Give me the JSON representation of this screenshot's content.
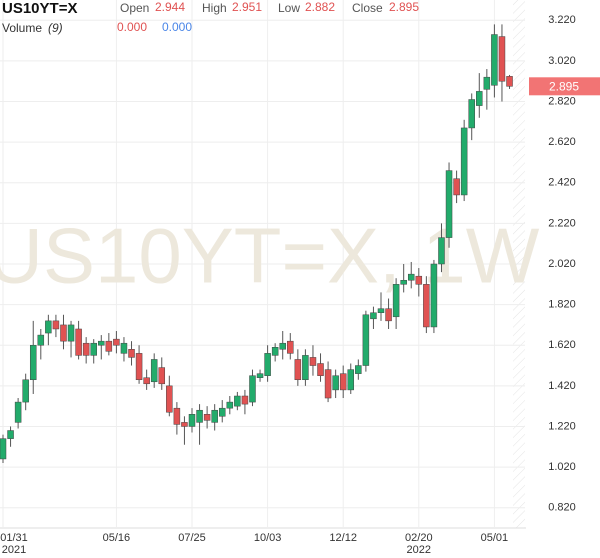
{
  "chart_data": {
    "type": "candlestick",
    "symbol": "US10YT=X",
    "watermark": "US10YT=X, 1W",
    "header": {
      "open_label": "Open",
      "open": 2.944,
      "high_label": "High",
      "high": 2.951,
      "low_label": "Low",
      "low": 2.882,
      "close_label": "Close",
      "close": 2.895
    },
    "volume": {
      "label": "Volume",
      "period_label": "(9)",
      "values": [
        {
          "value": 0,
          "label": "0.000"
        },
        {
          "value": 0,
          "label": "0.000"
        }
      ]
    },
    "last_price": 2.895,
    "up_color": "#22ab6b",
    "down_color": "#e05252",
    "grid": true,
    "categories": [
      "01/31",
      null,
      null,
      null,
      null,
      null,
      null,
      null,
      null,
      null,
      null,
      null,
      null,
      null,
      null,
      "05/16",
      null,
      null,
      null,
      null,
      null,
      null,
      null,
      null,
      null,
      "07/25",
      null,
      null,
      null,
      null,
      null,
      null,
      null,
      null,
      null,
      "10/03",
      null,
      null,
      null,
      null,
      null,
      null,
      null,
      null,
      null,
      "12/12",
      null,
      null,
      null,
      null,
      null,
      null,
      null,
      null,
      null,
      "02/20",
      null,
      null,
      null,
      null,
      null,
      null,
      null,
      null,
      null,
      "05/01",
      null,
      null
    ],
    "category_years": [
      "2021",
      null,
      null,
      null,
      null,
      null,
      null,
      null,
      null,
      null,
      null,
      null,
      null,
      null,
      null,
      null,
      null,
      null,
      null,
      null,
      null,
      null,
      null,
      null,
      null,
      null,
      null,
      null,
      null,
      null,
      null,
      null,
      null,
      null,
      null,
      null,
      null,
      null,
      null,
      null,
      null,
      null,
      null,
      null,
      null,
      null,
      null,
      null,
      null,
      null,
      null,
      null,
      null,
      null,
      null,
      "2022",
      null,
      null,
      null,
      null,
      null,
      null,
      null,
      null,
      null,
      null,
      null,
      null
    ],
    "open": [
      1.06,
      1.16,
      1.24,
      1.34,
      1.45,
      1.62,
      1.68,
      1.74,
      1.72,
      1.64,
      1.7,
      1.63,
      1.57,
      1.62,
      1.64,
      1.65,
      1.58,
      1.6,
      1.58,
      1.46,
      1.44,
      1.51,
      1.42,
      1.31,
      1.24,
      1.22,
      1.24,
      1.28,
      1.24,
      1.27,
      1.31,
      1.32,
      1.37,
      1.34,
      1.46,
      1.47,
      1.57,
      1.6,
      1.64,
      1.55,
      1.45,
      1.56,
      1.53,
      1.5,
      1.4,
      1.48,
      1.4,
      1.48,
      1.52,
      1.75,
      1.78,
      1.8,
      1.76,
      1.92,
      1.94,
      1.96,
      1.92,
      1.71,
      2.02,
      2.15,
      2.44,
      2.36,
      2.69,
      2.8,
      2.88,
      2.9,
      3.14,
      2.944
    ],
    "high": [
      1.18,
      1.22,
      1.36,
      1.48,
      1.74,
      1.7,
      1.77,
      1.77,
      1.77,
      1.74,
      1.74,
      1.66,
      1.65,
      1.67,
      1.68,
      1.69,
      1.66,
      1.64,
      1.62,
      1.5,
      1.58,
      1.56,
      1.47,
      1.34,
      1.27,
      1.31,
      1.33,
      1.32,
      1.33,
      1.35,
      1.37,
      1.39,
      1.4,
      1.5,
      1.5,
      1.62,
      1.63,
      1.69,
      1.68,
      1.6,
      1.6,
      1.62,
      1.58,
      1.54,
      1.5,
      1.52,
      1.53,
      1.55,
      1.79,
      1.81,
      1.88,
      1.85,
      1.95,
      2.02,
      2.03,
      2.0,
      1.96,
      2.04,
      2.22,
      2.52,
      2.48,
      2.73,
      2.86,
      2.96,
      2.98,
      3.2,
      3.2,
      2.951
    ],
    "low": [
      1.04,
      1.12,
      1.21,
      1.3,
      1.38,
      1.55,
      1.62,
      1.66,
      1.6,
      1.56,
      1.55,
      1.53,
      1.53,
      1.55,
      1.57,
      1.58,
      1.54,
      1.52,
      1.43,
      1.4,
      1.41,
      1.4,
      1.27,
      1.18,
      1.13,
      1.19,
      1.13,
      1.21,
      1.2,
      1.24,
      1.28,
      1.3,
      1.28,
      1.32,
      1.44,
      1.44,
      1.54,
      1.55,
      1.55,
      1.42,
      1.42,
      1.47,
      1.44,
      1.34,
      1.36,
      1.36,
      1.38,
      1.45,
      1.49,
      1.7,
      1.74,
      1.7,
      1.7,
      1.88,
      1.9,
      1.86,
      1.68,
      1.68,
      1.98,
      2.1,
      2.32,
      2.33,
      2.63,
      2.74,
      2.78,
      2.84,
      2.82,
      2.882
    ],
    "close": [
      1.16,
      1.2,
      1.34,
      1.45,
      1.62,
      1.67,
      1.74,
      1.7,
      1.64,
      1.72,
      1.57,
      1.57,
      1.63,
      1.64,
      1.59,
      1.62,
      1.63,
      1.56,
      1.45,
      1.43,
      1.55,
      1.43,
      1.29,
      1.23,
      1.22,
      1.28,
      1.3,
      1.25,
      1.3,
      1.31,
      1.34,
      1.37,
      1.33,
      1.47,
      1.48,
      1.58,
      1.61,
      1.63,
      1.58,
      1.45,
      1.57,
      1.52,
      1.47,
      1.36,
      1.47,
      1.4,
      1.5,
      1.52,
      1.77,
      1.78,
      1.8,
      1.74,
      1.92,
      1.94,
      1.97,
      1.92,
      1.71,
      2.02,
      2.15,
      2.48,
      2.36,
      2.69,
      2.83,
      2.87,
      2.94,
      3.15,
      2.92,
      2.895
    ],
    "ylim": [
      0.72,
      3.32
    ],
    "yticks": [
      {
        "value": 0.82,
        "label": "0.820"
      },
      {
        "value": 1.02,
        "label": "1.020"
      },
      {
        "value": 1.22,
        "label": "1.220"
      },
      {
        "value": 1.42,
        "label": "1.420"
      },
      {
        "value": 1.62,
        "label": "1.620"
      },
      {
        "value": 1.82,
        "label": "1.820"
      },
      {
        "value": 2.02,
        "label": "2.020"
      },
      {
        "value": 2.22,
        "label": "2.220"
      },
      {
        "value": 2.42,
        "label": "2.420"
      },
      {
        "value": 2.62,
        "label": "2.620"
      },
      {
        "value": 2.82,
        "label": "2.820"
      },
      {
        "value": 3.02,
        "label": "3.020"
      },
      {
        "value": 3.22,
        "label": "3.220"
      }
    ]
  }
}
